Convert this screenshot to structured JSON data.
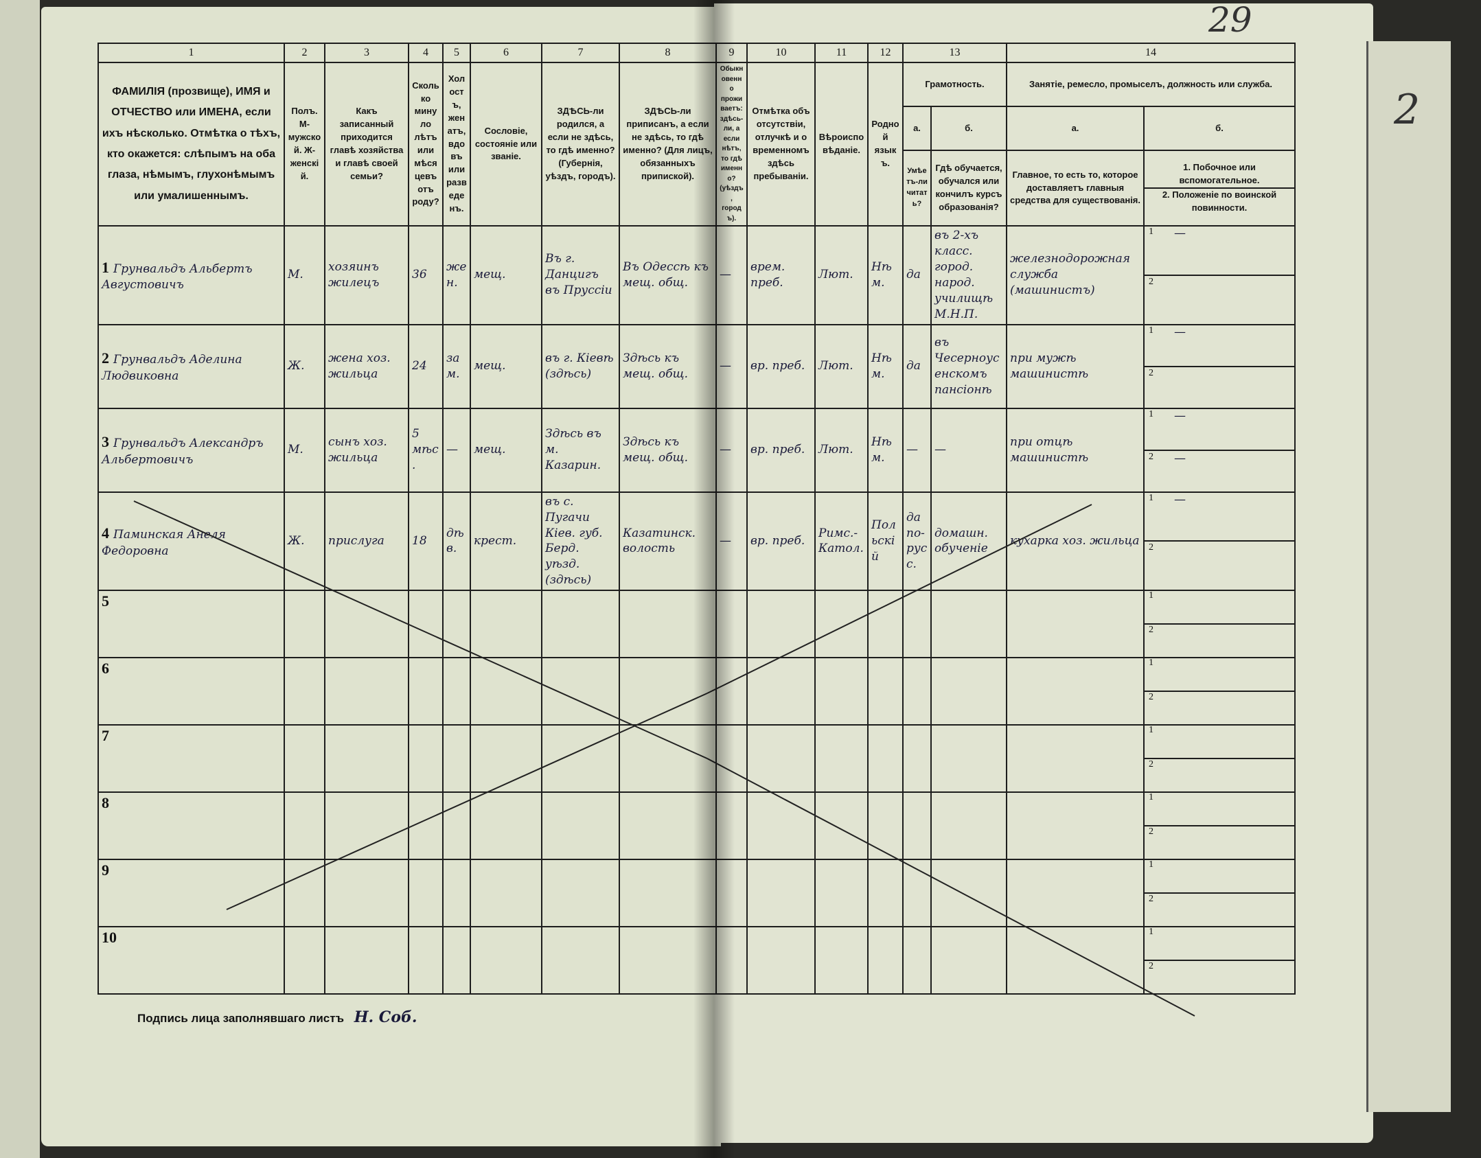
{
  "document": {
    "sheet_number_handwritten": "29",
    "right_page_number": "2",
    "signature_label": "Подпись лица заполнявшаго листъ",
    "signature_handwritten": "Н. Соб."
  },
  "column_numbers": [
    "1",
    "2",
    "3",
    "4",
    "5",
    "6",
    "7",
    "8",
    "9",
    "10",
    "11",
    "12",
    "13",
    "14"
  ],
  "headers": {
    "c1": "ФАМИЛІЯ (прозвище), ИМЯ и ОТЧЕСТВО или ИМЕНА, если ихъ нѣсколько. Отмѣтка о тѣхъ, кто окажется: слѣпымъ на оба глаза, нѣмымъ, глухонѣмымъ или умалишеннымъ.",
    "c2": "Полъ. М-мужской. Ж-женскій.",
    "c3": "Какъ записанный приходится главѣ хозяйства и главѣ своей семьи?",
    "c4": "Сколько минуло лѣтъ или мѣсяцевъ отъ роду?",
    "c5": "Холостъ, женатъ, вдовъ или разведенъ.",
    "c6": "Сословіе, состояніе или званіе.",
    "c7": "ЗДѢСЬ-ли родился, а если не здѣсь, то гдѣ именно? (Губернія, уѣздъ, городъ).",
    "c8": "ЗДѢСЬ-ли приписанъ, а если не здѣсь, то гдѣ именно? (Для лицъ, обязанныхъ припиской).",
    "c9": "Обыкновенно проживаетъ: здѣсь-ли, а если нѣтъ, то гдѣ именно? (уѣздъ, городъ).",
    "c10": "Отмѣтка объ отсутствіи, отлучкѣ и о временномъ здѣсь пребываніи.",
    "c11": "Вѣроисповѣданіе.",
    "c12": "Родной языкъ.",
    "c13": "Грамотность.",
    "c13a_letter": "а.",
    "c13a": "Умѣетъ-ли читать?",
    "c13b_letter": "б.",
    "c13b": "Гдѣ обучается, обучался или кончилъ курсъ образованія?",
    "c14": "Занятіе, ремесло, промыселъ, должность или служба.",
    "c14a_letter": "а.",
    "c14a": "Главное, то есть то, которое доставляетъ главныя средства для существованія.",
    "c14b_letter": "б.",
    "c14b1": "1. Побочное или вспомогательное.",
    "c14b2": "2. Положеніе по воинской повинности."
  },
  "rows": [
    {
      "n": "1",
      "name": "Грунвальдъ Альбертъ Августовичъ",
      "sex": "М.",
      "relation": "хозяинъ жилецъ",
      "age": "36",
      "marital": "жен.",
      "estate": "мещ.",
      "born": "Въ г. Данцигъ въ Пруссіи",
      "registered": "Въ Одессѣ къ мещ. общ.",
      "resides": "—",
      "absence": "врем. преб.",
      "religion": "Лют.",
      "language": "Нѣм.",
      "literate": "да",
      "education": "въ 2-хъ класс. город. народ. училищѣ М.Н.П.",
      "occupation": "железнодорожная служба (машинистъ)",
      "side1": "—",
      "side2": ""
    },
    {
      "n": "2",
      "name": "Грунвальдъ Аделина Людвиковна",
      "sex": "Ж.",
      "relation": "жена хоз. жильца",
      "age": "24",
      "marital": "зам.",
      "estate": "мещ.",
      "born": "въ г. Кіевѣ (здѣсь)",
      "registered": "Здѣсь къ мещ. общ.",
      "resides": "—",
      "absence": "вр. преб.",
      "religion": "Лют.",
      "language": "Нѣм.",
      "literate": "да",
      "education": "въ Чесерноусенскомъ пансіонѣ",
      "occupation": "при мужѣ машинистѣ",
      "side1": "—",
      "side2": ""
    },
    {
      "n": "3",
      "name": "Грунвальдъ Александръ Альбертовичъ",
      "sex": "М.",
      "relation": "сынъ хоз. жильца",
      "age": "5 мѣс.",
      "marital": "—",
      "estate": "мещ.",
      "born": "Здѣсь въ м. Казарин.",
      "registered": "Здѣсь къ мещ. общ.",
      "resides": "—",
      "absence": "вр. преб.",
      "religion": "Лют.",
      "language": "Нѣм.",
      "literate": "—",
      "education": "—",
      "occupation": "при отцѣ машинистѣ",
      "side1": "—",
      "side2": "—"
    },
    {
      "n": "4",
      "name": "Паминская Анеля Федоровна",
      "sex": "Ж.",
      "relation": "прислуга",
      "age": "18",
      "marital": "дѣв.",
      "estate": "крест.",
      "born": "въ с. Пугачи Кіев. губ. Берд. уѣзд. (здѣсь)",
      "registered": "Казатинск. волость",
      "resides": "—",
      "absence": "вр. преб.",
      "religion": "Римс.-Катол.",
      "language": "Польскій",
      "literate": "да по-русс.",
      "education": "домашн. обученіе",
      "occupation": "кухарка хоз. жильца",
      "side1": "—",
      "side2": ""
    }
  ],
  "empty_rows": [
    "5",
    "6",
    "7",
    "8",
    "9",
    "10"
  ],
  "sub_labels": [
    "1",
    "2"
  ]
}
